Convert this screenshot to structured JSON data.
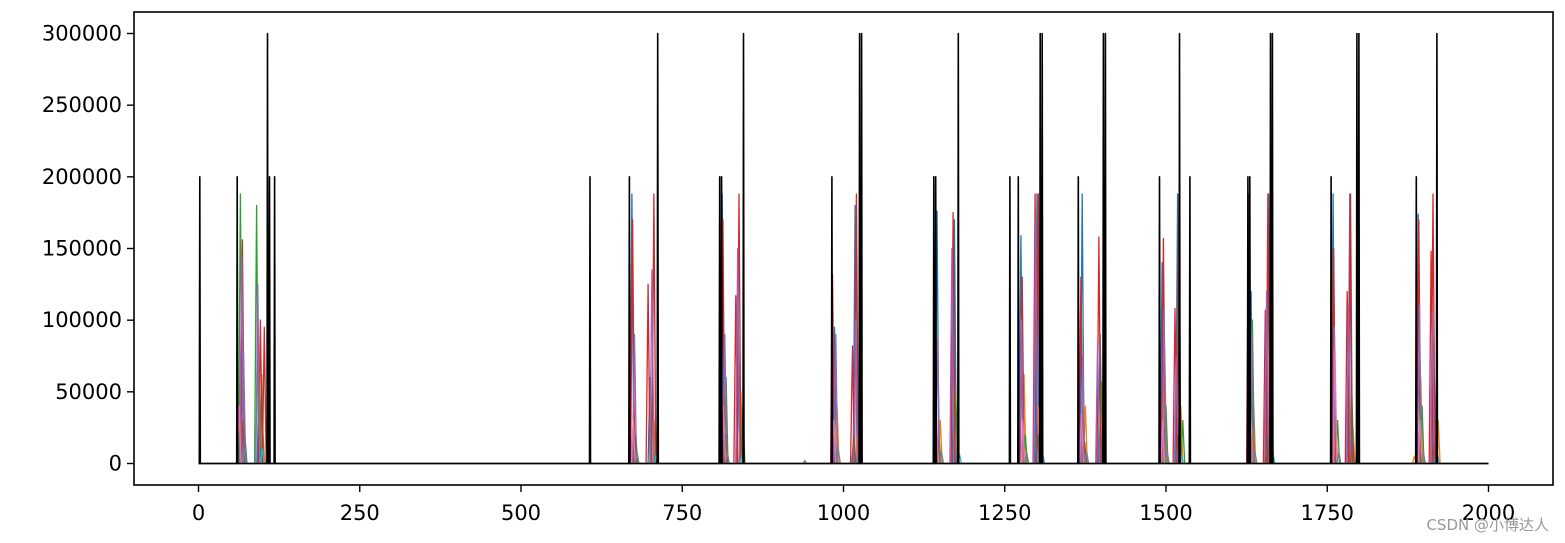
{
  "watermark": "CSDN @小博达人",
  "chart_data": {
    "type": "line",
    "title": "",
    "xlabel": "",
    "ylabel": "",
    "xlim": [
      -100,
      2100
    ],
    "ylim": [
      -15000,
      315000
    ],
    "xticks": [
      0,
      250,
      500,
      750,
      1000,
      1250,
      1500,
      1750,
      2000
    ],
    "xtick_labels": [
      "0",
      "250",
      "500",
      "750",
      "1000",
      "1250",
      "1500",
      "1750",
      "2000"
    ],
    "yticks": [
      0,
      50000,
      100000,
      150000,
      200000,
      250000,
      300000
    ],
    "ytick_labels": [
      "0",
      "50000",
      "100000",
      "150000",
      "200000",
      "250000",
      "300000"
    ],
    "grid": false,
    "legend": "none",
    "series": [
      {
        "color": "#000000",
        "spikes": [
          {
            "x": 2,
            "y": 200000
          },
          {
            "x": 60,
            "y": 200000
          },
          {
            "x": 107,
            "y": 300000
          },
          {
            "x": 110,
            "y": 200000
          },
          {
            "x": 118,
            "y": 200000
          },
          {
            "x": 607,
            "y": 200000
          },
          {
            "x": 668,
            "y": 200000
          },
          {
            "x": 712,
            "y": 300000
          },
          {
            "x": 808,
            "y": 200000
          },
          {
            "x": 811,
            "y": 200000
          },
          {
            "x": 845,
            "y": 300000
          },
          {
            "x": 982,
            "y": 200000
          },
          {
            "x": 1025,
            "y": 300000
          },
          {
            "x": 1028,
            "y": 300000
          },
          {
            "x": 1140,
            "y": 200000
          },
          {
            "x": 1143,
            "y": 200000
          },
          {
            "x": 1178,
            "y": 300000
          },
          {
            "x": 1258,
            "y": 200000
          },
          {
            "x": 1271,
            "y": 200000
          },
          {
            "x": 1305,
            "y": 300000
          },
          {
            "x": 1308,
            "y": 300000
          },
          {
            "x": 1364,
            "y": 200000
          },
          {
            "x": 1403,
            "y": 300000
          },
          {
            "x": 1406,
            "y": 300000
          },
          {
            "x": 1490,
            "y": 200000
          },
          {
            "x": 1521,
            "y": 300000
          },
          {
            "x": 1537,
            "y": 200000
          },
          {
            "x": 1627,
            "y": 200000
          },
          {
            "x": 1630,
            "y": 200000
          },
          {
            "x": 1662,
            "y": 300000
          },
          {
            "x": 1665,
            "y": 300000
          },
          {
            "x": 1756,
            "y": 200000
          },
          {
            "x": 1796,
            "y": 300000
          },
          {
            "x": 1799,
            "y": 300000
          },
          {
            "x": 1888,
            "y": 200000
          },
          {
            "x": 1920,
            "y": 300000
          }
        ]
      },
      {
        "color": "#1f77b4",
        "spikes": [
          {
            "x": 66,
            "y": 90000
          },
          {
            "x": 72,
            "y": 20000
          },
          {
            "x": 94,
            "y": 60000
          },
          {
            "x": 672,
            "y": 188000
          },
          {
            "x": 700,
            "y": 60000
          },
          {
            "x": 812,
            "y": 188000
          },
          {
            "x": 838,
            "y": 70000
          },
          {
            "x": 986,
            "y": 95000
          },
          {
            "x": 1018,
            "y": 180000
          },
          {
            "x": 1145,
            "y": 176000
          },
          {
            "x": 1172,
            "y": 170000
          },
          {
            "x": 1275,
            "y": 159000
          },
          {
            "x": 1300,
            "y": 188000
          },
          {
            "x": 1370,
            "y": 188000
          },
          {
            "x": 1398,
            "y": 90000
          },
          {
            "x": 1494,
            "y": 140000
          },
          {
            "x": 1518,
            "y": 188000
          },
          {
            "x": 1632,
            "y": 120000
          },
          {
            "x": 1659,
            "y": 188000
          },
          {
            "x": 1759,
            "y": 188000
          },
          {
            "x": 1785,
            "y": 188000
          },
          {
            "x": 1891,
            "y": 174000
          },
          {
            "x": 1916,
            "y": 60000
          }
        ]
      },
      {
        "color": "#ff7f0e",
        "spikes": [
          {
            "x": 64,
            "y": 50000
          },
          {
            "x": 100,
            "y": 20000
          },
          {
            "x": 675,
            "y": 40000
          },
          {
            "x": 708,
            "y": 30000
          },
          {
            "x": 815,
            "y": 30000
          },
          {
            "x": 841,
            "y": 50000
          },
          {
            "x": 990,
            "y": 40000
          },
          {
            "x": 1022,
            "y": 30000
          },
          {
            "x": 1150,
            "y": 30000
          },
          {
            "x": 1176,
            "y": 35000
          },
          {
            "x": 1280,
            "y": 62000
          },
          {
            "x": 1303,
            "y": 40000
          },
          {
            "x": 1375,
            "y": 40000
          },
          {
            "x": 1401,
            "y": 45000
          },
          {
            "x": 1498,
            "y": 80000
          },
          {
            "x": 1523,
            "y": 40000
          },
          {
            "x": 1636,
            "y": 40000
          },
          {
            "x": 1664,
            "y": 30000
          },
          {
            "x": 1763,
            "y": 40000
          },
          {
            "x": 1790,
            "y": 25000
          },
          {
            "x": 1885,
            "y": 5000
          },
          {
            "x": 1895,
            "y": 60000
          },
          {
            "x": 1922,
            "y": 30000
          }
        ]
      },
      {
        "color": "#2ca02c",
        "spikes": [
          {
            "x": 65,
            "y": 188000
          },
          {
            "x": 90,
            "y": 180000
          },
          {
            "x": 98,
            "y": 62000
          },
          {
            "x": 678,
            "y": 20000
          },
          {
            "x": 704,
            "y": 60000
          },
          {
            "x": 818,
            "y": 60000
          },
          {
            "x": 844,
            "y": 40000
          },
          {
            "x": 984,
            "y": 65000
          },
          {
            "x": 1024,
            "y": 30000
          },
          {
            "x": 1148,
            "y": 20000
          },
          {
            "x": 1174,
            "y": 50000
          },
          {
            "x": 1282,
            "y": 20000
          },
          {
            "x": 1306,
            "y": 30000
          },
          {
            "x": 1372,
            "y": 30000
          },
          {
            "x": 1400,
            "y": 57000
          },
          {
            "x": 1500,
            "y": 40000
          },
          {
            "x": 1526,
            "y": 30000
          },
          {
            "x": 1634,
            "y": 100000
          },
          {
            "x": 1661,
            "y": 40000
          },
          {
            "x": 1766,
            "y": 30000
          },
          {
            "x": 1788,
            "y": 50000
          },
          {
            "x": 1897,
            "y": 40000
          },
          {
            "x": 1918,
            "y": 30000
          }
        ]
      },
      {
        "color": "#d62728",
        "spikes": [
          {
            "x": 68,
            "y": 156000
          },
          {
            "x": 96,
            "y": 100000
          },
          {
            "x": 102,
            "y": 95000
          },
          {
            "x": 673,
            "y": 170000
          },
          {
            "x": 697,
            "y": 125000
          },
          {
            "x": 706,
            "y": 188000
          },
          {
            "x": 813,
            "y": 170000
          },
          {
            "x": 833,
            "y": 117000
          },
          {
            "x": 838,
            "y": 188000
          },
          {
            "x": 983,
            "y": 132000
          },
          {
            "x": 1014,
            "y": 82000
          },
          {
            "x": 1020,
            "y": 188000
          },
          {
            "x": 1142,
            "y": 130000
          },
          {
            "x": 1170,
            "y": 175000
          },
          {
            "x": 1277,
            "y": 130000
          },
          {
            "x": 1297,
            "y": 188000
          },
          {
            "x": 1302,
            "y": 188000
          },
          {
            "x": 1368,
            "y": 130000
          },
          {
            "x": 1396,
            "y": 158000
          },
          {
            "x": 1496,
            "y": 157000
          },
          {
            "x": 1514,
            "y": 108000
          },
          {
            "x": 1520,
            "y": 188000
          },
          {
            "x": 1628,
            "y": 188000
          },
          {
            "x": 1654,
            "y": 107000
          },
          {
            "x": 1658,
            "y": 188000
          },
          {
            "x": 1760,
            "y": 150000
          },
          {
            "x": 1781,
            "y": 120000
          },
          {
            "x": 1786,
            "y": 188000
          },
          {
            "x": 1892,
            "y": 170000
          },
          {
            "x": 1911,
            "y": 148000
          },
          {
            "x": 1914,
            "y": 188000
          }
        ]
      },
      {
        "color": "#9467bd",
        "spikes": [
          {
            "x": 67,
            "y": 145000
          },
          {
            "x": 70,
            "y": 78000
          },
          {
            "x": 92,
            "y": 125000
          },
          {
            "x": 676,
            "y": 90000
          },
          {
            "x": 703,
            "y": 135000
          },
          {
            "x": 816,
            "y": 90000
          },
          {
            "x": 836,
            "y": 150000
          },
          {
            "x": 988,
            "y": 90000
          },
          {
            "x": 1019,
            "y": 100000
          },
          {
            "x": 1146,
            "y": 88000
          },
          {
            "x": 1168,
            "y": 150000
          },
          {
            "x": 1276,
            "y": 100000
          },
          {
            "x": 1298,
            "y": 170000
          },
          {
            "x": 1371,
            "y": 75000
          },
          {
            "x": 1394,
            "y": 85000
          },
          {
            "x": 1497,
            "y": 108000
          },
          {
            "x": 1516,
            "y": 75000
          },
          {
            "x": 1633,
            "y": 90000
          },
          {
            "x": 1656,
            "y": 120000
          },
          {
            "x": 1761,
            "y": 95000
          },
          {
            "x": 1783,
            "y": 110000
          },
          {
            "x": 1893,
            "y": 110000
          },
          {
            "x": 1913,
            "y": 105000
          }
        ]
      },
      {
        "color": "#8c564b",
        "spikes": [
          {
            "x": 69,
            "y": 30000
          },
          {
            "x": 677,
            "y": 20000
          },
          {
            "x": 817,
            "y": 20000
          },
          {
            "x": 1016,
            "y": 20000
          },
          {
            "x": 1147,
            "y": 15000
          },
          {
            "x": 1301,
            "y": 20000
          },
          {
            "x": 1374,
            "y": 15000
          },
          {
            "x": 1519,
            "y": 20000
          },
          {
            "x": 1657,
            "y": 20000
          },
          {
            "x": 1789,
            "y": 20000
          },
          {
            "x": 1917,
            "y": 15000
          }
        ]
      },
      {
        "color": "#e377c2",
        "spikes": [
          {
            "x": 63,
            "y": 40000
          },
          {
            "x": 674,
            "y": 30000
          },
          {
            "x": 814,
            "y": 40000
          },
          {
            "x": 985,
            "y": 30000
          },
          {
            "x": 1144,
            "y": 35000
          },
          {
            "x": 1278,
            "y": 30000
          },
          {
            "x": 1369,
            "y": 35000
          },
          {
            "x": 1495,
            "y": 30000
          },
          {
            "x": 1631,
            "y": 30000
          },
          {
            "x": 1762,
            "y": 80000
          },
          {
            "x": 1894,
            "y": 30000
          }
        ]
      },
      {
        "color": "#7f7f7f",
        "spikes": [
          {
            "x": 71,
            "y": 10000
          },
          {
            "x": 680,
            "y": 8000
          },
          {
            "x": 820,
            "y": 8000
          },
          {
            "x": 940,
            "y": 2000
          },
          {
            "x": 992,
            "y": 10000
          },
          {
            "x": 1152,
            "y": 8000
          },
          {
            "x": 1284,
            "y": 8000
          },
          {
            "x": 1377,
            "y": 8000
          },
          {
            "x": 1502,
            "y": 8000
          },
          {
            "x": 1638,
            "y": 8000
          },
          {
            "x": 1768,
            "y": 8000
          },
          {
            "x": 1899,
            "y": 8000
          }
        ]
      },
      {
        "color": "#17becf",
        "spikes": [
          {
            "x": 99,
            "y": 10000
          },
          {
            "x": 710,
            "y": 6000
          },
          {
            "x": 843,
            "y": 6000
          },
          {
            "x": 1026,
            "y": 6000
          },
          {
            "x": 1180,
            "y": 6000
          },
          {
            "x": 1309,
            "y": 6000
          },
          {
            "x": 1404,
            "y": 6000
          },
          {
            "x": 1524,
            "y": 6000
          },
          {
            "x": 1666,
            "y": 6000
          },
          {
            "x": 1797,
            "y": 6000
          },
          {
            "x": 1921,
            "y": 6000
          }
        ]
      }
    ]
  }
}
